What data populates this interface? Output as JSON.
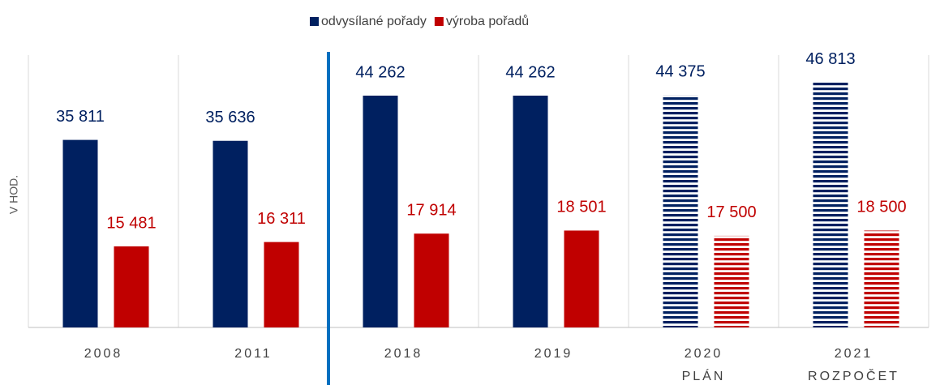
{
  "chart_data": {
    "type": "bar",
    "y_label": "V HOD.",
    "categories": [
      "2008",
      "2011",
      "2018",
      "2019",
      "2020",
      "2021"
    ],
    "category_sublabels": [
      null,
      null,
      null,
      null,
      "PLÁN",
      "ROZPOČET"
    ],
    "hatched": [
      false,
      false,
      false,
      false,
      true,
      true
    ],
    "divider_after": 1,
    "series": [
      {
        "name": "odvysílané pořady",
        "color": "#002060",
        "values": [
          35811,
          35636,
          44262,
          44262,
          44375,
          46813
        ],
        "value_labels": [
          "35 811",
          "35 636",
          "44 262",
          "44 262",
          "44 375",
          "46 813"
        ]
      },
      {
        "name": "výroba pořadů",
        "color": "#c00000",
        "values": [
          15481,
          16311,
          17914,
          18501,
          17500,
          18500
        ],
        "value_labels": [
          "15 481",
          "16 311",
          "17 914",
          "18 501",
          "17 500",
          "18 500"
        ]
      }
    ],
    "ylim": [
      0,
      52000
    ],
    "grid": true
  }
}
